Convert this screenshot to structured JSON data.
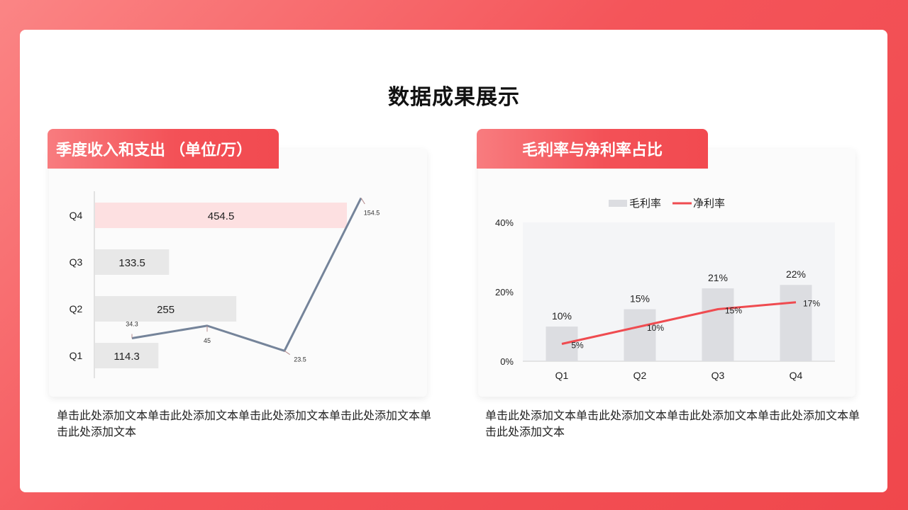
{
  "page": {
    "title": "数据成果展示"
  },
  "left_panel": {
    "title": "季度收入和支出 （单位/万）",
    "description": "单击此处添加文本单击此处添加文本单击此处添加文本单击此处添加文本单击此处添加文本"
  },
  "right_panel": {
    "title": "毛利率与净利率占比",
    "description": "单击此处添加文本单击此处添加文本单击此处添加文本单击此处添加文本单击此处添加文本"
  },
  "colors": {
    "accent": "#f24a50",
    "bar_grey": "#e8e8e8",
    "bar_highlight": "#fde0e1",
    "line_slate": "#75849a",
    "net_line": "#ef4b50",
    "col_grey": "#dcdde1",
    "plot_bg": "#f4f5f7"
  },
  "chart_data": [
    {
      "type": "bar",
      "orientation": "horizontal",
      "categories": [
        "Q1",
        "Q2",
        "Q3",
        "Q4"
      ],
      "series": [
        {
          "values": [
            114.3,
            255,
            133.5,
            454.5
          ]
        },
        {
          "type": "line",
          "values": [
            34.3,
            45,
            23.5,
            154.5
          ]
        }
      ],
      "highlight": "Q4",
      "xlim": [
        0,
        500
      ],
      "line_ylim": [
        0,
        170
      ],
      "grid": false
    },
    {
      "type": "bar",
      "categories": [
        "Q1",
        "Q2",
        "Q3",
        "Q4"
      ],
      "series": [
        {
          "name": "毛利率",
          "type": "bar",
          "values": [
            10,
            15,
            21,
            22
          ],
          "labels": [
            "10%",
            "15%",
            "21%",
            "22%"
          ]
        },
        {
          "name": "净利率",
          "type": "line",
          "values": [
            5,
            10,
            15,
            17
          ],
          "labels": [
            "5%",
            "10%",
            "15%",
            "17%"
          ]
        }
      ],
      "ylim": [
        0,
        40
      ],
      "yticks": [
        "0%",
        "20%",
        "40%"
      ],
      "legend": "top-center",
      "grid": false
    }
  ]
}
